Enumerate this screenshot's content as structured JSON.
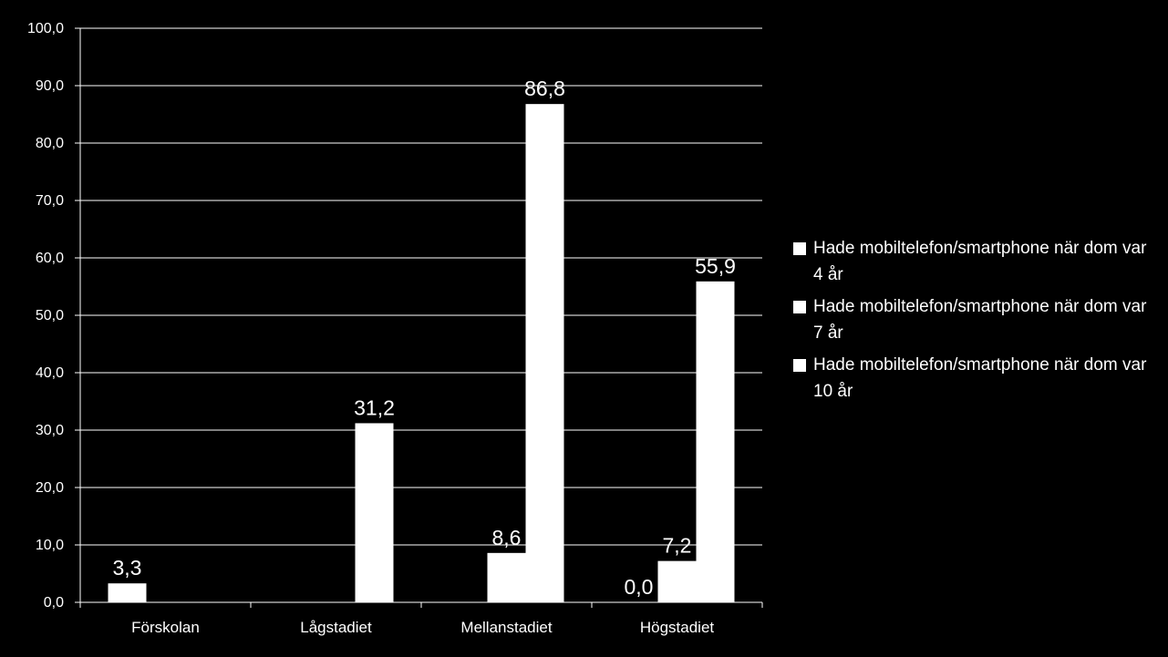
{
  "chart_data": {
    "type": "bar",
    "categories": [
      "Förskolan",
      "Lågstadiet",
      "Mellanstadiet",
      "Högstadiet"
    ],
    "series": [
      {
        "name": "Hade mobiltelefon/smartphone när dom var 4 år",
        "values": [
          3.3,
          null,
          null,
          0.0
        ],
        "labels": [
          "3,3",
          "",
          "",
          "0,0"
        ]
      },
      {
        "name": "Hade mobiltelefon/smartphone när dom var 7 år",
        "values": [
          null,
          null,
          8.6,
          7.2
        ],
        "labels": [
          "",
          "",
          "8,6",
          "7,2"
        ]
      },
      {
        "name": "Hade mobiltelefon/smartphone när dom var 10 år",
        "values": [
          null,
          31.2,
          86.8,
          55.9
        ],
        "labels": [
          "",
          "31,2",
          "86,8",
          "55,9"
        ]
      }
    ],
    "yticks": [
      "0,0",
      "10,0",
      "20,0",
      "30,0",
      "40,0",
      "50,0",
      "60,0",
      "70,0",
      "80,0",
      "90,0",
      "100,0"
    ],
    "ylim": [
      0,
      100
    ],
    "title": "",
    "xlabel": "",
    "ylabel": "",
    "grid": true,
    "legend_position": "right",
    "colors": {
      "background": "#000000",
      "bars": "#ffffff",
      "grid": "#ffffff"
    }
  }
}
